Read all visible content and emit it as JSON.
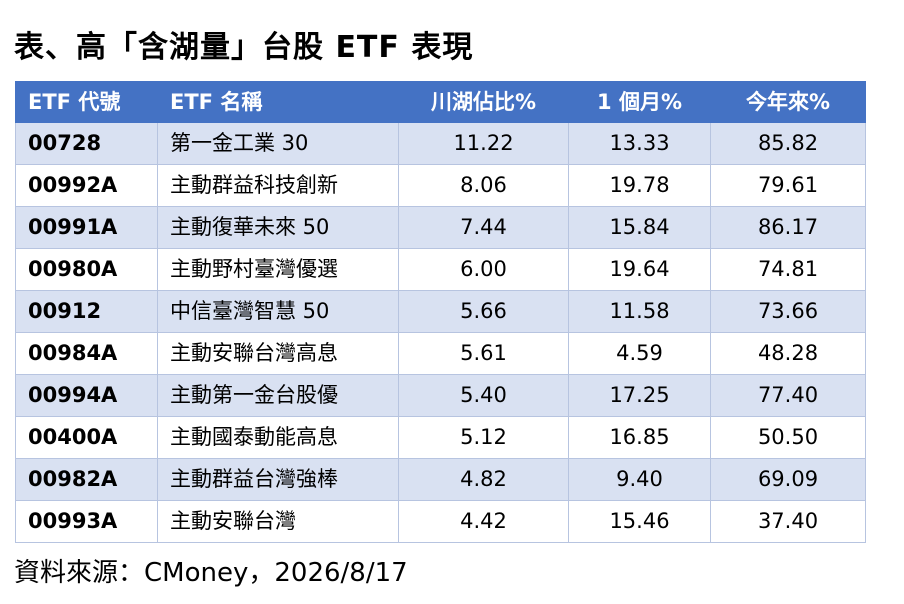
{
  "title": "表、高「含湖量」台股 ETF 表現",
  "table": {
    "headers": [
      "ETF 代號",
      "ETF 名稱",
      "川湖佔比%",
      "1 個月%",
      "今年來%"
    ],
    "rows": [
      {
        "code": "00728",
        "name": "第一金工業 30",
        "share": "11.22",
        "month": "13.33",
        "ytd": "85.82"
      },
      {
        "code": "00992A",
        "name": "主動群益科技創新",
        "share": "8.06",
        "month": "19.78",
        "ytd": "79.61"
      },
      {
        "code": "00991A",
        "name": "主動復華未來 50",
        "share": "7.44",
        "month": "15.84",
        "ytd": "86.17"
      },
      {
        "code": "00980A",
        "name": "主動野村臺灣優選",
        "share": "6.00",
        "month": "19.64",
        "ytd": "74.81"
      },
      {
        "code": "00912",
        "name": "中信臺灣智慧 50",
        "share": "5.66",
        "month": "11.58",
        "ytd": "73.66"
      },
      {
        "code": "00984A",
        "name": "主動安聯台灣高息",
        "share": "5.61",
        "month": "4.59",
        "ytd": "48.28"
      },
      {
        "code": "00994A",
        "name": "主動第一金台股優",
        "share": "5.40",
        "month": "17.25",
        "ytd": "77.40"
      },
      {
        "code": "00400A",
        "name": "主動國泰動能高息",
        "share": "5.12",
        "month": "16.85",
        "ytd": "50.50"
      },
      {
        "code": "00982A",
        "name": "主動群益台灣強棒",
        "share": "4.82",
        "month": "9.40",
        "ytd": "69.09"
      },
      {
        "code": "00993A",
        "name": "主動安聯台灣",
        "share": "4.42",
        "month": "15.46",
        "ytd": "37.40"
      }
    ]
  },
  "source": "資料來源：CMoney，2026/8/17",
  "colors": {
    "header_bg": "#4472c4",
    "band_bg": "#d9e1f2",
    "border": "#b7c4e0"
  }
}
